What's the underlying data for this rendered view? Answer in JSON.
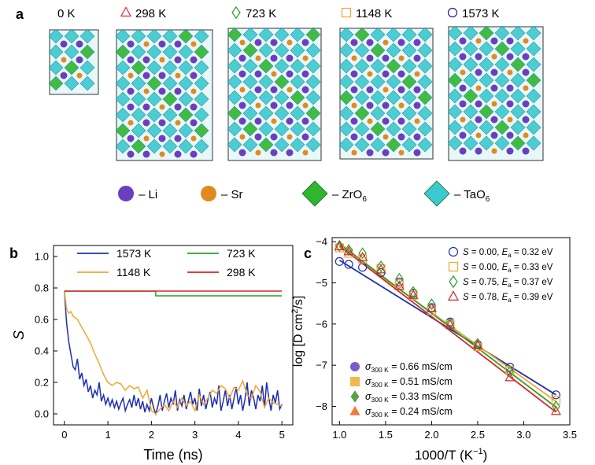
{
  "panel_labels": {
    "a": "a",
    "b": "b",
    "c": "c"
  },
  "panel_a": {
    "temperatures": [
      "0 K",
      "298 K",
      "723 K",
      "1148 K",
      "1573 K"
    ],
    "temp_marker_colors": [
      "#000000",
      "#e0303a",
      "#2e9a2e",
      "#f2a33a",
      "#1c1c9e"
    ],
    "legend": [
      {
        "symbol": "sphere",
        "label": "– Li",
        "color": "#6a3fbf"
      },
      {
        "symbol": "sphere",
        "label": "– Sr",
        "color": "#e08a20"
      },
      {
        "symbol": "octahedron",
        "label": "– ZrO",
        "sub": "6",
        "color": "#2fb52f"
      },
      {
        "symbol": "octahedron",
        "label": "– TaO",
        "sub": "6",
        "color": "#3cc8cf"
      }
    ]
  },
  "chart_data": [
    {
      "type": "line",
      "panel": "b",
      "xlabel": "Time (ns)",
      "ylabel": "S",
      "xlim": [
        -0.25,
        5.25
      ],
      "ylim": [
        -0.07,
        1.07
      ],
      "xticks": [
        0,
        1,
        2,
        3,
        4,
        5
      ],
      "yticks": [
        0.0,
        0.2,
        0.4,
        0.6,
        0.8,
        1.0
      ],
      "xtick_labels": [
        "0",
        "1",
        "2",
        "3",
        "4",
        "5"
      ],
      "ytick_labels": [
        "0.0",
        "0.2",
        "0.4",
        "0.6",
        "0.8",
        "1.0"
      ],
      "legend": [
        "1573 K",
        "723 K",
        "1148 K",
        "298 K"
      ],
      "series": [
        {
          "name": "298 K",
          "color": "#d62728",
          "x": [
            0,
            5
          ],
          "y": [
            0.78,
            0.78
          ]
        },
        {
          "name": "723 K",
          "color": "#2ca02c",
          "x": [
            0,
            2.1,
            2.1,
            5
          ],
          "y": [
            0.78,
            0.78,
            0.75,
            0.75
          ]
        },
        {
          "name": "1148 K",
          "color": "#f0a830",
          "x": [
            0,
            0.05,
            0.1,
            0.15,
            0.2,
            0.3,
            0.4,
            0.5,
            0.6,
            0.7,
            0.8,
            0.9,
            1.0,
            1.1,
            1.2,
            1.3,
            1.4,
            1.5,
            1.6,
            1.7,
            1.8,
            1.9,
            2.0,
            2.1,
            2.2,
            2.3,
            2.4,
            2.5,
            2.6,
            2.7,
            2.8,
            2.9,
            3.0,
            3.1,
            3.2,
            3.3,
            3.4,
            3.5,
            3.6,
            3.7,
            3.8,
            3.9,
            4.0,
            4.1,
            4.2,
            4.3,
            4.4,
            4.5,
            4.6,
            4.7,
            4.8,
            4.9,
            5.0
          ],
          "y": [
            0.78,
            0.67,
            0.64,
            0.65,
            0.62,
            0.6,
            0.55,
            0.5,
            0.45,
            0.38,
            0.32,
            0.25,
            0.2,
            0.18,
            0.2,
            0.19,
            0.15,
            0.18,
            0.16,
            0.17,
            0.1,
            0.15,
            0.02,
            0.0,
            0.03,
            0.06,
            0.02,
            0.08,
            0.04,
            0.1,
            0.05,
            0.08,
            0.02,
            0.12,
            0.06,
            0.1,
            0.15,
            0.13,
            0.18,
            0.16,
            0.1,
            0.17,
            0.15,
            0.21,
            0.12,
            0.1,
            0.18,
            0.14,
            0.04,
            0.1,
            0.07,
            0.06,
            0.05
          ]
        },
        {
          "name": "1573 K",
          "color": "#1f2fb4",
          "x": [
            0,
            0.05,
            0.1,
            0.15,
            0.2,
            0.25,
            0.3,
            0.35,
            0.4,
            0.45,
            0.5,
            0.55,
            0.6,
            0.65,
            0.7,
            0.75,
            0.8,
            0.85,
            0.9,
            0.95,
            1.0,
            1.05,
            1.1,
            1.15,
            1.2,
            1.25,
            1.3,
            1.35,
            1.4,
            1.45,
            1.5,
            1.55,
            1.6,
            1.65,
            1.7,
            1.75,
            1.8,
            1.85,
            1.9,
            1.95,
            2.0,
            2.05,
            2.1,
            2.15,
            2.2,
            2.25,
            2.3,
            2.35,
            2.4,
            2.45,
            2.5,
            2.55,
            2.6,
            2.65,
            2.7,
            2.75,
            2.8,
            2.85,
            2.9,
            2.95,
            3.0,
            3.05,
            3.1,
            3.15,
            3.2,
            3.25,
            3.3,
            3.35,
            3.4,
            3.45,
            3.5,
            3.55,
            3.6,
            3.65,
            3.7,
            3.75,
            3.8,
            3.85,
            3.9,
            3.95,
            4.0,
            4.05,
            4.1,
            4.15,
            4.2,
            4.25,
            4.3,
            4.35,
            4.4,
            4.45,
            4.5,
            4.55,
            4.6,
            4.65,
            4.7,
            4.75,
            4.8,
            4.85,
            4.9,
            4.95,
            5.0
          ],
          "y": [
            0.78,
            0.58,
            0.46,
            0.38,
            0.3,
            0.28,
            0.35,
            0.22,
            0.26,
            0.18,
            0.22,
            0.14,
            0.18,
            0.1,
            0.15,
            0.12,
            0.2,
            0.08,
            0.12,
            0.06,
            0.1,
            0.05,
            0.09,
            0.04,
            0.08,
            0.03,
            0.07,
            0.1,
            0.02,
            0.06,
            0.09,
            0.04,
            0.12,
            0.05,
            0.1,
            0.03,
            0.08,
            0.01,
            0.06,
            0.02,
            0.1,
            0.04,
            0.0,
            0.05,
            0.12,
            0.02,
            0.08,
            0.13,
            0.04,
            0.1,
            0.06,
            0.15,
            0.02,
            0.09,
            0.05,
            0.12,
            0.03,
            0.08,
            0.14,
            0.06,
            0.1,
            0.02,
            0.16,
            0.05,
            0.12,
            0.03,
            0.09,
            0.14,
            0.04,
            0.1,
            0.06,
            0.18,
            0.02,
            0.08,
            0.15,
            0.05,
            0.12,
            0.03,
            0.1,
            0.17,
            0.06,
            0.12,
            0.02,
            0.09,
            0.2,
            0.05,
            0.15,
            0.1,
            0.03,
            0.12,
            0.08,
            0.18,
            0.04,
            0.2,
            0.1,
            0.02,
            0.12,
            0.07,
            0.15,
            0.03,
            0.06
          ]
        }
      ]
    },
    {
      "type": "scatter",
      "panel": "c",
      "xlabel": "1000/T (K",
      "xlabel_sup": "−1",
      "xlabel_end": ")",
      "ylabel": "log [D cm",
      "ylabel_sup": "2",
      "ylabel_end": "/s]",
      "xlim": [
        0.92,
        3.5
      ],
      "ylim": [
        -8.45,
        -3.9
      ],
      "xticks": [
        1.0,
        1.5,
        2.0,
        2.5,
        3.0,
        3.5
      ],
      "yticks": [
        -8,
        -7,
        -6,
        -5,
        -4
      ],
      "xtick_labels": [
        "1.0",
        "1.5",
        "2.0",
        "2.5",
        "3.0",
        "3.5"
      ],
      "ytick_labels": [
        "−8",
        "−7",
        "−6",
        "−5",
        "−4"
      ],
      "legend_open": [
        {
          "S": "0.00",
          "Ea": "0.32 eV",
          "marker": "circle",
          "color": "#1f2fb4"
        },
        {
          "S": "0.00",
          "Ea": "0.33 eV",
          "marker": "square",
          "color": "#f0a830"
        },
        {
          "S": "0.75",
          "Ea": "0.37 eV",
          "marker": "diamond",
          "color": "#2ca02c"
        },
        {
          "S": "0.78",
          "Ea": "0.39 eV",
          "marker": "triangle",
          "color": "#d62728"
        }
      ],
      "legend_filled": [
        {
          "sigma": "0.66 mS/cm",
          "marker": "circle",
          "color": "#7a5cc8"
        },
        {
          "sigma": "0.51 mS/cm",
          "marker": "square",
          "color": "#f3b84d"
        },
        {
          "sigma": "0.33 mS/cm",
          "marker": "diamond",
          "color": "#5a9e4a"
        },
        {
          "sigma": "0.24 mS/cm",
          "marker": "triangle",
          "color": "#ef7b3e"
        }
      ],
      "legend_text": {
        "S_label": "S",
        "eq": " = ",
        "Ea_label": "E",
        "Ea_sub": "a",
        "sigma_label": "σ",
        "sigma_sub": "300 K"
      },
      "series": [
        {
          "name": "1573 K",
          "marker": "circle",
          "color": "#1f2fb4",
          "x": [
            1.0,
            1.1,
            1.25,
            1.45,
            1.65,
            1.8,
            2.0,
            2.2,
            2.5,
            2.85,
            3.35
          ],
          "y": [
            -4.48,
            -4.55,
            -4.62,
            -4.75,
            -4.98,
            -5.25,
            -5.6,
            -5.95,
            -6.5,
            -7.05,
            -7.72
          ]
        },
        {
          "name": "1148 K",
          "marker": "square",
          "color": "#f0a830",
          "x": [
            1.0,
            1.1,
            1.25,
            1.45,
            1.65,
            1.8,
            2.0,
            2.2,
            2.5,
            2.85,
            3.35
          ],
          "y": [
            -4.15,
            -4.28,
            -4.42,
            -4.65,
            -5.02,
            -5.3,
            -5.68,
            -6.0,
            -6.55,
            -7.12,
            -7.85
          ]
        },
        {
          "name": "723 K",
          "marker": "diamond",
          "color": "#2ca02c",
          "x": [
            1.0,
            1.1,
            1.25,
            1.45,
            1.65,
            1.8,
            2.0,
            2.2,
            2.5,
            2.85,
            3.35
          ],
          "y": [
            -4.1,
            -4.2,
            -4.28,
            -4.6,
            -4.9,
            -5.22,
            -5.52,
            -5.98,
            -6.48,
            -7.15,
            -8.0
          ]
        },
        {
          "name": "298 K",
          "marker": "triangle",
          "color": "#d62728",
          "x": [
            1.0,
            1.1,
            1.25,
            1.45,
            1.65,
            1.8,
            2.0,
            2.2,
            2.5,
            2.85,
            3.35
          ],
          "y": [
            -4.12,
            -4.24,
            -4.38,
            -4.68,
            -5.08,
            -5.3,
            -5.62,
            -6.02,
            -6.52,
            -7.3,
            -8.12
          ]
        }
      ],
      "fits": [
        {
          "color": "#1f2fb4",
          "y": [
            -4.45,
            -7.72
          ]
        },
        {
          "color": "#f0a830",
          "y": [
            -4.12,
            -7.88
          ]
        },
        {
          "color": "#2ca02c",
          "y": [
            -4.05,
            -8.02
          ]
        },
        {
          "color": "#d62728",
          "y": [
            -4.1,
            -8.14
          ]
        }
      ],
      "fit_x": [
        1.0,
        3.35
      ]
    }
  ]
}
